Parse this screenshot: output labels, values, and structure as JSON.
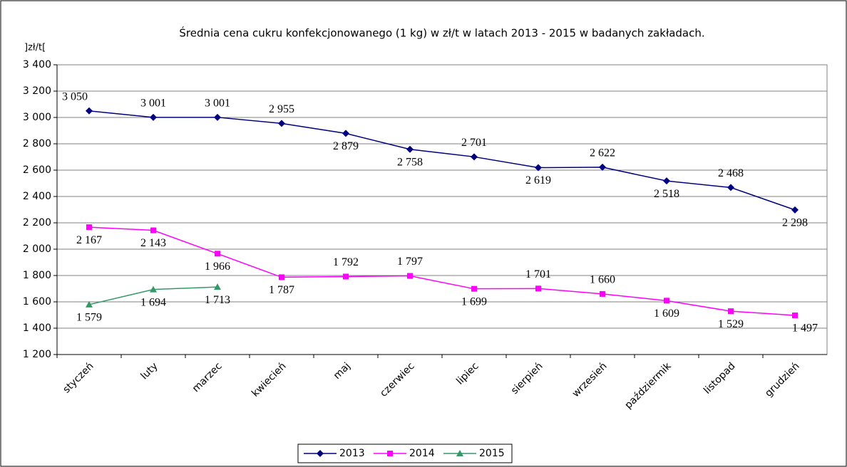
{
  "chart_data": {
    "type": "line",
    "title": "Średnia cena cukru konfekcjonowanego (1 kg) w zł/t w latach 2013 - 2015  w badanych zakładach.",
    "y_label": "]zł/t[",
    "categories": [
      "styczeń",
      "luty",
      "marzec",
      "kwiecień",
      "maj",
      "czerwiec",
      "lipiec",
      "sierpień",
      "wrzesień",
      "paździermik",
      "listopad",
      "grudzień"
    ],
    "series": [
      {
        "name": "2013",
        "color": "#000080",
        "marker": "diamond",
        "values": [
          3050,
          3001,
          3001,
          2955,
          2879,
          2758,
          2701,
          2619,
          2622,
          2518,
          2468,
          2298
        ],
        "value_labels": [
          "3 050",
          "3 001",
          "3 001",
          "2 955",
          "2 879",
          "2 758",
          "2 701",
          "2 619",
          "2 622",
          "2 518",
          "2 468",
          "2 298"
        ]
      },
      {
        "name": "2014",
        "color": "#ff00ff",
        "marker": "square",
        "values": [
          2167,
          2143,
          1966,
          1787,
          1792,
          1797,
          1699,
          1701,
          1660,
          1609,
          1529,
          1497
        ],
        "value_labels": [
          "2 167",
          "2 143",
          "1 966",
          "1 787",
          "1 792",
          "1 797",
          "1 699",
          "1 701",
          "1 660",
          "1 609",
          "1 529",
          "1 497"
        ]
      },
      {
        "name": "2015",
        "color": "#339966",
        "marker": "triangle",
        "values": [
          1579,
          1694,
          1713,
          null,
          null,
          null,
          null,
          null,
          null,
          null,
          null,
          null
        ],
        "value_labels": [
          "1 579",
          "1 694",
          "1 713",
          null,
          null,
          null,
          null,
          null,
          null,
          null,
          null,
          null
        ]
      }
    ],
    "ylim": [
      1200,
      3400
    ],
    "yticks": [
      {
        "value": 1200,
        "label": "1 200"
      },
      {
        "value": 1400,
        "label": "1 400"
      },
      {
        "value": 1600,
        "label": "1 600"
      },
      {
        "value": 1800,
        "label": "1 800"
      },
      {
        "value": 2000,
        "label": "2 000"
      },
      {
        "value": 2200,
        "label": "2 200"
      },
      {
        "value": 2400,
        "label": "2 400"
      },
      {
        "value": 2600,
        "label": "2 600"
      },
      {
        "value": 2800,
        "label": "2 800"
      },
      {
        "value": 3000,
        "label": "3 000"
      },
      {
        "value": 3200,
        "label": "3 200"
      },
      {
        "value": 3400,
        "label": "3 400"
      }
    ],
    "grid": true,
    "legend": "bottom"
  }
}
